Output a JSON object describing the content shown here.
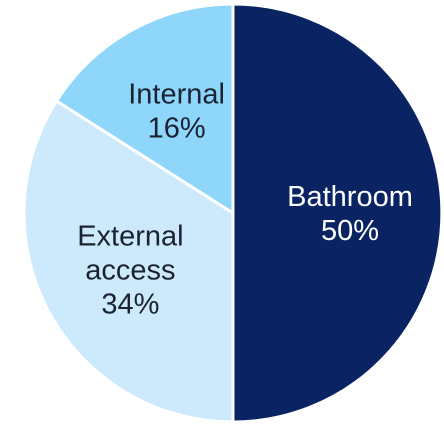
{
  "chart_data": {
    "type": "pie",
    "title": "",
    "start_angle_deg": 0,
    "direction": "clockwise",
    "slices": [
      {
        "name_lines": [
          "Bathroom"
        ],
        "value": 50,
        "value_label": "50%",
        "color": "#0a2463",
        "label_color": "#ffffff"
      },
      {
        "name_lines": [
          "External",
          "access"
        ],
        "value": 34,
        "value_label": "34%",
        "color": "#cdeafc",
        "label_color": "#1b2333"
      },
      {
        "name_lines": [
          "Internal"
        ],
        "value": 16,
        "value_label": "16%",
        "color": "#8fd6fb",
        "label_color": "#1b2333"
      }
    ]
  }
}
